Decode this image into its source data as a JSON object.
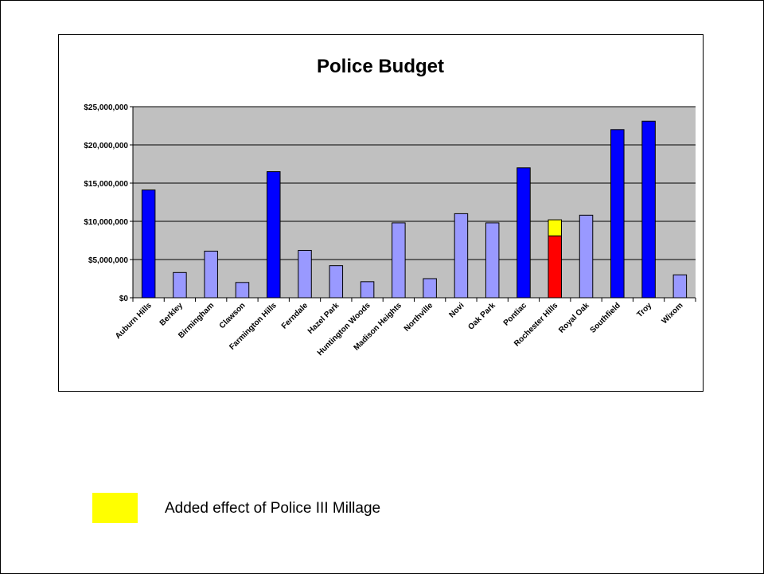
{
  "chart_data": {
    "type": "bar",
    "title": "Police Budget",
    "xlabel": "",
    "ylabel": "",
    "ylim": [
      0,
      25000000
    ],
    "yticks": [
      0,
      5000000,
      10000000,
      15000000,
      20000000,
      25000000
    ],
    "ytick_labels": [
      "$0",
      "$5,000,000",
      "$10,000,000",
      "$15,000,000",
      "$20,000,000",
      "$25,000,000"
    ],
    "grid": true,
    "categories": [
      "Auburn Hills",
      "Berkley",
      "Birmingham",
      "Clawson",
      "Farmington Hills",
      "Ferndale",
      "Hazel Park",
      "Huntington Woods",
      "Madison Heights",
      "Northville",
      "Novi",
      "Oak Park",
      "Pontiac",
      "Rochester Hills",
      "Royal Oak",
      "Southfield",
      "Troy",
      "Wixom"
    ],
    "values": [
      14100000,
      3300000,
      6100000,
      2000000,
      16500000,
      6200000,
      4200000,
      2100000,
      9800000,
      2500000,
      11000000,
      9800000,
      17000000,
      8100000,
      10800000,
      22000000,
      23100000,
      3000000
    ],
    "added_effect": [
      0,
      0,
      0,
      0,
      0,
      0,
      0,
      0,
      0,
      0,
      0,
      0,
      0,
      2100000,
      0,
      0,
      0,
      0
    ],
    "bar_colors": [
      "#0000ff",
      "#9999ff",
      "#9999ff",
      "#9999ff",
      "#0000ff",
      "#9999ff",
      "#9999ff",
      "#9999ff",
      "#9999ff",
      "#9999ff",
      "#9999ff",
      "#9999ff",
      "#0000ff",
      "#ff0000",
      "#9999ff",
      "#0000ff",
      "#0000ff",
      "#9999ff"
    ],
    "added_color": "#ffff00",
    "plot_background": "#c0c0c0"
  },
  "legend": {
    "label": "Added effect of Police III Millage",
    "color": "#ffff00"
  }
}
